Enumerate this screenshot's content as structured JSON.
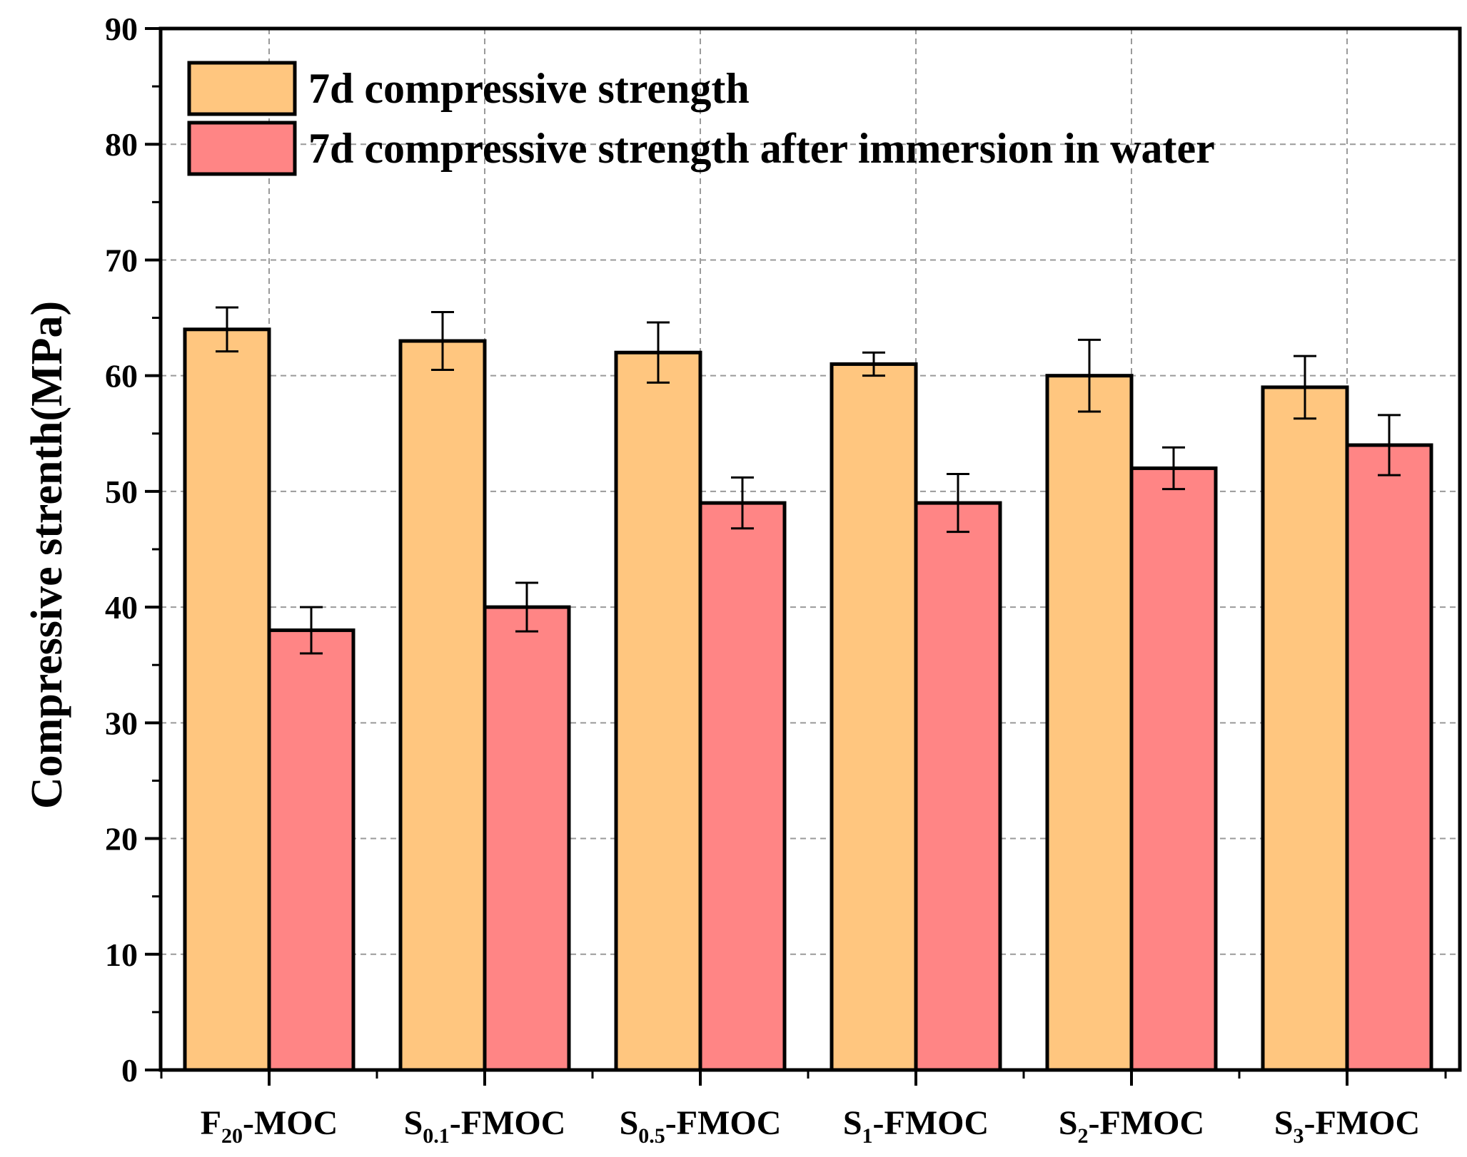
{
  "chart_data": {
    "type": "bar",
    "title": "",
    "xlabel": "",
    "ylabel": "Compressive strenth(MPa)",
    "ylim": [
      0,
      90
    ],
    "yticks": [
      0,
      10,
      20,
      30,
      40,
      50,
      60,
      70,
      80,
      90
    ],
    "grid": true,
    "legend_position": "top-left",
    "categories": [
      {
        "main": "F",
        "sub": "20",
        "suffix": "-MOC"
      },
      {
        "main": "S",
        "sub": "0.1",
        "suffix": "-FMOC"
      },
      {
        "main": "S",
        "sub": "0.5",
        "suffix": "-FMOC"
      },
      {
        "main": "S",
        "sub": "1",
        "suffix": "-FMOC"
      },
      {
        "main": "S",
        "sub": "2",
        "suffix": "-FMOC"
      },
      {
        "main": "S",
        "sub": "3",
        "suffix": "-FMOC"
      }
    ],
    "series": [
      {
        "name": "7d compressive strength",
        "color": "#FFC67F",
        "values": [
          64,
          63,
          62,
          61,
          60,
          59
        ],
        "errors": [
          1.9,
          2.5,
          2.6,
          1.0,
          3.1,
          2.7
        ]
      },
      {
        "name": "7d compressive strength after immersion in water",
        "color": "#FF8585",
        "values": [
          38,
          40,
          49,
          49,
          52,
          54
        ],
        "errors": [
          2.0,
          2.1,
          2.2,
          2.5,
          1.8,
          2.6
        ]
      }
    ]
  }
}
